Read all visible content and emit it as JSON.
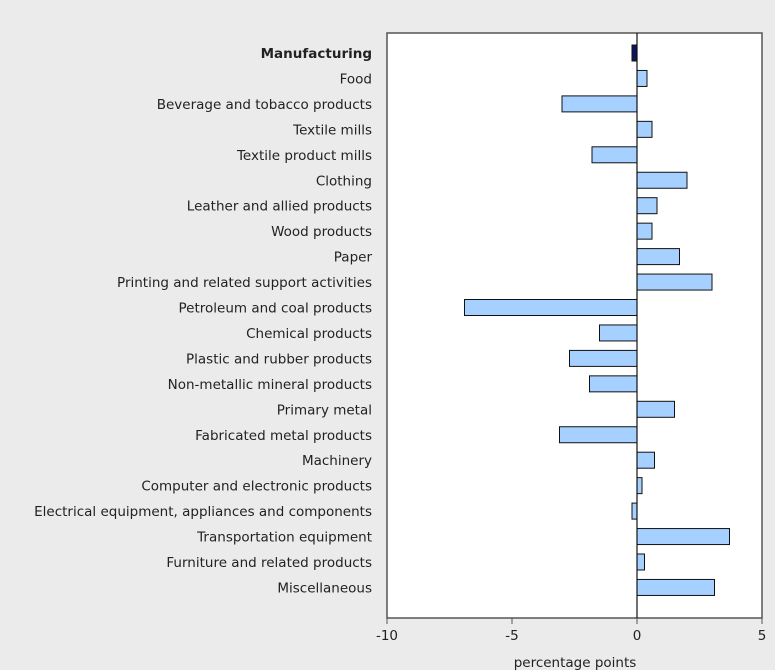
{
  "chart_data": {
    "type": "bar",
    "orientation": "horizontal",
    "xlabel": "percentage points",
    "xlim": [
      -10,
      5
    ],
    "xticks": [
      -10,
      -5,
      0,
      5
    ],
    "categories": [
      "Manufacturing",
      "Food",
      "Beverage and tobacco products",
      "Textile mills",
      "Textile product mills",
      "Clothing",
      "Leather and allied products",
      "Wood products",
      "Paper",
      "Printing and related support activities",
      "Petroleum and coal products",
      "Chemical products",
      "Plastic and rubber products",
      "Non-metallic mineral products",
      "Primary metal",
      "Fabricated metal products",
      "Machinery",
      "Computer and electronic products",
      "Electrical equipment, appliances and components",
      "Transportation equipment",
      "Furniture and related products",
      "Miscellaneous"
    ],
    "values": [
      -0.2,
      0.4,
      -3.0,
      0.6,
      -1.8,
      2.0,
      0.8,
      0.6,
      1.7,
      3.0,
      -6.9,
      -1.5,
      -2.7,
      -1.9,
      1.5,
      -3.1,
      0.7,
      0.2,
      -0.2,
      3.7,
      0.3,
      3.1
    ],
    "highlight_category": "Manufacturing",
    "colors": {
      "highlight": "#0b1560",
      "bar": "#a6d0ff",
      "stroke": "#111111"
    }
  }
}
